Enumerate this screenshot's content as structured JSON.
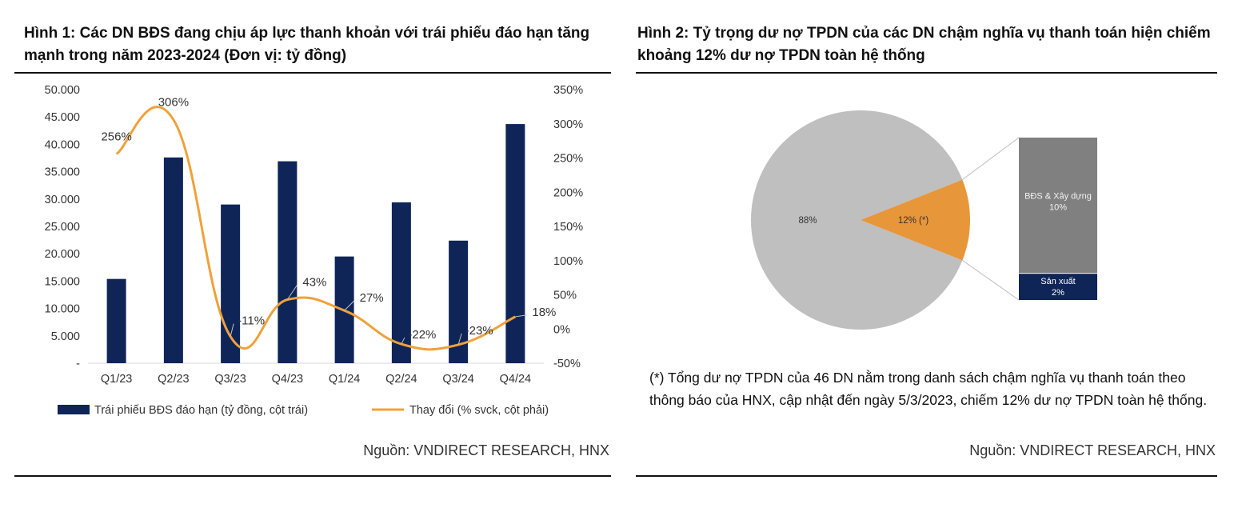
{
  "panel1": {
    "title": "Hình 1: Các DN BĐS đang chịu áp lực thanh khoản với trái phiếu đáo hạn tăng mạnh trong năm 2023-2024 (Đơn vị: tỷ đồng)",
    "source": "Nguồn: VNDIRECT RESEARCH, HNX"
  },
  "panel2": {
    "title": "Hình 2: Tỷ trọng dư nợ TPDN của các DN chậm nghĩa vụ thanh toán hiện chiếm khoảng 12% dư nợ TPDN toàn hệ thống",
    "note": "(*) Tổng dư nợ TPDN của 46 DN nằm trong danh sách chậm nghĩa vụ thanh toán theo thông báo của HNX, cập nhật đến ngày 5/3/2023, chiếm 12% dư nợ TPDN toàn hệ thống.",
    "source": "Nguồn: VNDIRECT RESEARCH, HNX"
  },
  "colors": {
    "bar": "#0f2557",
    "line": "#f0a13a",
    "pie_main": "#bfbfbf",
    "pie_slice": "#e8963a",
    "stack_top": "#808080",
    "stack_bottom": "#0f2557"
  },
  "chart_data": [
    {
      "type": "bar",
      "categories": [
        "Q1/23",
        "Q2/23",
        "Q3/23",
        "Q4/23",
        "Q1/24",
        "Q2/24",
        "Q3/24",
        "Q4/24"
      ],
      "series": [
        {
          "name": "Trái phiếu BĐS đáo hạn (tỷ đồng, cột trái)",
          "type": "bar",
          "axis": "left",
          "values": [
            15400,
            37600,
            29000,
            36900,
            19500,
            29400,
            22400,
            43700
          ]
        },
        {
          "name": "Thay đổi (% svck, cột phải)",
          "type": "line",
          "axis": "right",
          "values": [
            256,
            306,
            -11,
            43,
            27,
            -22,
            -23,
            18
          ],
          "labels": [
            "256%",
            "306%",
            "-11%",
            "43%",
            "27%",
            "-22%",
            "-23%",
            "18%"
          ]
        }
      ],
      "y_left": {
        "min": 0,
        "max": 50000,
        "ticks": [
          "-",
          "5.000",
          "10.000",
          "15.000",
          "20.000",
          "25.000",
          "30.000",
          "35.000",
          "40.000",
          "45.000",
          "50.000"
        ]
      },
      "y_right": {
        "min": -50,
        "max": 350,
        "ticks": [
          "-50%",
          "0%",
          "50%",
          "100%",
          "150%",
          "200%",
          "250%",
          "300%",
          "350%"
        ]
      },
      "grid": false,
      "legend": "bottom"
    },
    {
      "type": "pie",
      "slices": [
        {
          "label": "88%",
          "value": 88
        },
        {
          "label": "12% (*)",
          "value": 12
        }
      ],
      "breakdown": [
        {
          "name": "BĐS & Xây dựng",
          "value_label": "10%",
          "value": 10
        },
        {
          "name": "Sản xuất",
          "value_label": "2%",
          "value": 2
        }
      ]
    }
  ]
}
